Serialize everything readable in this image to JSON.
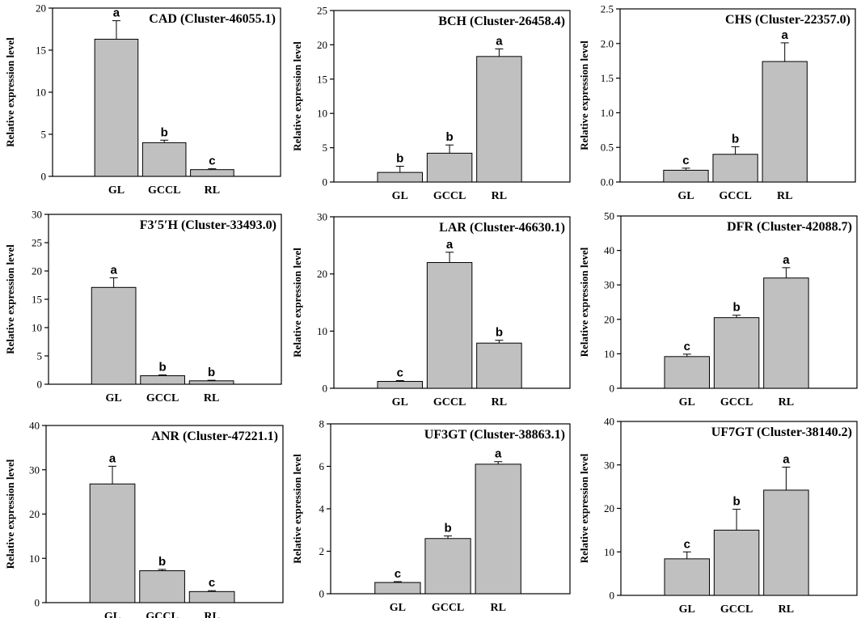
{
  "chart_data": [
    {
      "type": "bar",
      "title": "CAD (Cluster-46055.1)",
      "ylabel": "Relative expression level",
      "categories": [
        "GL",
        "GCCL",
        "RL"
      ],
      "values": [
        16.3,
        4.0,
        0.8
      ],
      "errors": [
        2.2,
        0.3,
        0.1
      ],
      "letters": [
        "a",
        "b",
        "c"
      ],
      "ylim": [
        0,
        20
      ],
      "yticks": [
        "0",
        "5",
        "10",
        "15",
        "20"
      ]
    },
    {
      "type": "bar",
      "title": "BCH (Cluster-26458.4)",
      "ylabel": "Relative expression level",
      "categories": [
        "GL",
        "GCCL",
        "RL"
      ],
      "values": [
        1.4,
        4.2,
        18.3
      ],
      "errors": [
        0.9,
        1.2,
        1.1
      ],
      "letters": [
        "b",
        "b",
        "a"
      ],
      "ylim": [
        0,
        25
      ],
      "yticks": [
        "0",
        "5",
        "10",
        "15",
        "20",
        "25"
      ]
    },
    {
      "type": "bar",
      "title": "CHS (Cluster-22357.0)",
      "ylabel": "Relative expression level",
      "categories": [
        "GL",
        "GCCL",
        "RL"
      ],
      "values": [
        0.17,
        0.4,
        1.74
      ],
      "errors": [
        0.03,
        0.11,
        0.27
      ],
      "letters": [
        "c",
        "b",
        "a"
      ],
      "ylim": [
        0,
        2.5
      ],
      "yticks": [
        "0.0",
        "0.5",
        "1.0",
        "1.5",
        "2.0",
        "2.5"
      ]
    },
    {
      "type": "bar",
      "title": "F3′5′H (Cluster-33493.0)",
      "ylabel": "Relative expression level",
      "categories": [
        "GL",
        "GCCL",
        "RL"
      ],
      "values": [
        17.1,
        1.5,
        0.6
      ],
      "errors": [
        1.7,
        0.15,
        0.1
      ],
      "letters": [
        "a",
        "b",
        "b"
      ],
      "ylim": [
        0,
        30
      ],
      "yticks": [
        "0",
        "5",
        "10",
        "15",
        "20",
        "25",
        "30"
      ]
    },
    {
      "type": "bar",
      "title": "LAR (Cluster-46630.1)",
      "ylabel": "Relative expression level",
      "categories": [
        "GL",
        "GCCL",
        "RL"
      ],
      "values": [
        1.2,
        22.0,
        7.9
      ],
      "errors": [
        0.15,
        1.8,
        0.5
      ],
      "letters": [
        "c",
        "a",
        "b"
      ],
      "ylim": [
        0,
        30
      ],
      "yticks": [
        "0",
        "10",
        "20",
        "30"
      ]
    },
    {
      "type": "bar",
      "title": "DFR (Cluster-42088.7)",
      "ylabel": "Relative expression level",
      "categories": [
        "GL",
        "GCCL",
        "RL"
      ],
      "values": [
        9.2,
        20.5,
        32.0
      ],
      "errors": [
        0.7,
        0.7,
        3.0
      ],
      "letters": [
        "c",
        "b",
        "a"
      ],
      "ylim": [
        0,
        50
      ],
      "yticks": [
        "0",
        "10",
        "20",
        "30",
        "40",
        "50"
      ]
    },
    {
      "type": "bar",
      "title": "ANR (Cluster-47221.1)",
      "ylabel": "Relative expression level",
      "categories": [
        "GL",
        "GCCL",
        "RL"
      ],
      "values": [
        26.8,
        7.2,
        2.5
      ],
      "errors": [
        4.0,
        0.3,
        0.2
      ],
      "letters": [
        "a",
        "b",
        "c"
      ],
      "ylim": [
        0,
        40
      ],
      "yticks": [
        "0",
        "10",
        "20",
        "30",
        "40"
      ]
    },
    {
      "type": "bar",
      "title": "UF3GT (Cluster-38863.1)",
      "ylabel": "Relative expression level",
      "categories": [
        "GL",
        "GCCL",
        "RL"
      ],
      "values": [
        0.53,
        2.6,
        6.1
      ],
      "errors": [
        0.04,
        0.12,
        0.12
      ],
      "letters": [
        "c",
        "b",
        "a"
      ],
      "ylim": [
        0,
        8
      ],
      "yticks": [
        "0",
        "2",
        "4",
        "6",
        "8"
      ]
    },
    {
      "type": "bar",
      "title": "UF7GT  (Cluster-38140.2)",
      "ylabel": "Relative expression level",
      "categories": [
        "GL",
        "GCCL",
        "RL"
      ],
      "values": [
        8.4,
        15.0,
        24.2
      ],
      "errors": [
        1.6,
        4.8,
        5.3
      ],
      "letters": [
        "c",
        "b",
        "a"
      ],
      "ylim": [
        0,
        40
      ],
      "yticks": [
        "0",
        "10",
        "20",
        "30",
        "40"
      ]
    }
  ]
}
